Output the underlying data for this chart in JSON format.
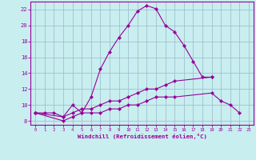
{
  "xlabel": "Windchill (Refroidissement éolien,°C)",
  "bg_color": "#c8eef0",
  "grid_color": "#9ab8c8",
  "line_color": "#990099",
  "xlim": [
    -0.5,
    23.5
  ],
  "ylim": [
    7.5,
    23.0
  ],
  "xticks": [
    0,
    1,
    2,
    3,
    4,
    5,
    6,
    7,
    8,
    9,
    10,
    11,
    12,
    13,
    14,
    15,
    16,
    17,
    18,
    19,
    20,
    21,
    22,
    23
  ],
  "yticks": [
    8,
    10,
    12,
    14,
    16,
    18,
    20,
    22
  ],
  "curve1_x": [
    0,
    1,
    2,
    3,
    4,
    5,
    6,
    7,
    8,
    9,
    10,
    11,
    12,
    13,
    14,
    15,
    16,
    17,
    18,
    19
  ],
  "curve1_y": [
    9.0,
    9.0,
    9.0,
    8.5,
    10.0,
    9.0,
    11.0,
    14.5,
    16.7,
    18.5,
    20.0,
    21.8,
    22.5,
    22.1,
    20.0,
    19.2,
    17.5,
    15.5,
    13.5,
    13.5
  ],
  "curve2_x": [
    0,
    3,
    4,
    5,
    6,
    7,
    8,
    9,
    10,
    11,
    12,
    13,
    14,
    15,
    19
  ],
  "curve2_y": [
    9.0,
    8.5,
    9.0,
    9.5,
    9.5,
    10.0,
    10.5,
    10.5,
    11.0,
    11.5,
    12.0,
    12.0,
    12.5,
    13.0,
    13.5
  ],
  "curve3_x": [
    0,
    3,
    4,
    5,
    6,
    7,
    8,
    9,
    10,
    11,
    12,
    13,
    14,
    15,
    19,
    20,
    21,
    22
  ],
  "curve3_y": [
    9.0,
    8.0,
    8.5,
    9.0,
    9.0,
    9.0,
    9.5,
    9.5,
    10.0,
    10.0,
    10.5,
    11.0,
    11.0,
    11.0,
    11.5,
    10.5,
    10.0,
    9.0
  ]
}
